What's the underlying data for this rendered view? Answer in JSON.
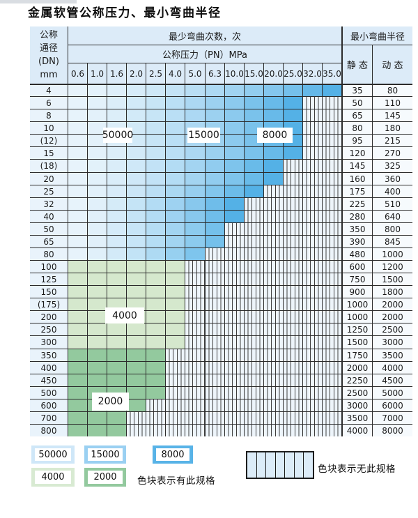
{
  "title": "金属软管公称压力、最小弯曲半径",
  "table": {
    "dn_header_lines": [
      "公称",
      "通径",
      "(DN)",
      "mm"
    ],
    "bend_cycles_header": "最少弯曲次数，次",
    "pn_header": "公称压力（PN）MPa",
    "radius_header": "最小弯曲半径",
    "static_header": "静 态",
    "dynamic_header": "动 态",
    "pn_columns": [
      "0.6",
      "1.0",
      "1.6",
      "2.0",
      "2.5",
      "4.0",
      "5.0",
      "6.3",
      "10.0",
      "15.0",
      "20.0",
      "25.0",
      "32.0",
      "35.0"
    ]
  },
  "overlay_labels": [
    "50000",
    "15000",
    "8000",
    "4000",
    "2000"
  ],
  "legend": {
    "items": [
      {
        "label": "50000",
        "color": "#cfe7f8"
      },
      {
        "label": "15000",
        "color": "#9ad0f2"
      },
      {
        "label": "8000",
        "color": "#58b3e7"
      },
      {
        "label": "4000",
        "color": "#d8ead2"
      },
      {
        "label": "2000",
        "color": "#93c99e"
      }
    ],
    "has_spec_text": "色块表示有此规格",
    "no_spec_text": "色块表示无此规格"
  },
  "colors": {
    "zone_50000": "#cfe7f8",
    "zone_15000": "#9ad0f2",
    "zone_8000": "#54b1e6",
    "zone_4000": "#d5e8cd",
    "zone_2000": "#93c99e",
    "blue_start": "#e7f3fb",
    "grid": "#2b2b2b",
    "header_bg": "#dcebf8",
    "dn_bg": "#e9f3fb",
    "value_bg": "#f6fafd",
    "stripe_bg": "#eef5fb"
  },
  "chart_data": {
    "type": "table",
    "title": "金属软管公称压力、最小弯曲半径",
    "column_group_header": "最少弯曲次数，次",
    "pn_columns_mpa": [
      0.6,
      1.0,
      1.6,
      2.0,
      2.5,
      4.0,
      5.0,
      6.3,
      10.0,
      15.0,
      20.0,
      25.0,
      32.0,
      35.0
    ],
    "bend_cycle_zone_labels": [
      "50000",
      "15000",
      "8000",
      "4000",
      "2000"
    ],
    "notes": [
      "色块表示有此规格",
      "色块表示无此规格"
    ],
    "rows": [
      {
        "dn": "4",
        "colored": 14,
        "max_pn": "35.0",
        "band": "blue",
        "static": "35",
        "dynamic": "80"
      },
      {
        "dn": "6",
        "colored": 12,
        "max_pn": "25.0",
        "band": "blue",
        "static": "50",
        "dynamic": "110"
      },
      {
        "dn": "8",
        "colored": 12,
        "max_pn": "25.0",
        "band": "blue",
        "static": "65",
        "dynamic": "145"
      },
      {
        "dn": "10",
        "colored": 12,
        "max_pn": "25.0",
        "band": "blue",
        "static": "80",
        "dynamic": "180"
      },
      {
        "dn": "(12)",
        "colored": 12,
        "max_pn": "25.0",
        "band": "blue",
        "static": "95",
        "dynamic": "215"
      },
      {
        "dn": "15",
        "colored": 12,
        "max_pn": "25.0",
        "band": "blue",
        "static": "120",
        "dynamic": "270"
      },
      {
        "dn": "(18)",
        "colored": 11,
        "max_pn": "20.0",
        "band": "blue",
        "static": "145",
        "dynamic": "325"
      },
      {
        "dn": "20",
        "colored": 11,
        "max_pn": "20.0",
        "band": "blue",
        "static": "160",
        "dynamic": "360"
      },
      {
        "dn": "25",
        "colored": 10,
        "max_pn": "15.0",
        "band": "blue",
        "static": "175",
        "dynamic": "400"
      },
      {
        "dn": "32",
        "colored": 9,
        "max_pn": "10.0",
        "band": "blue",
        "static": "225",
        "dynamic": "510"
      },
      {
        "dn": "40",
        "colored": 9,
        "max_pn": "10.0",
        "band": "blue",
        "static": "280",
        "dynamic": "640"
      },
      {
        "dn": "50",
        "colored": 8,
        "max_pn": "6.3",
        "band": "blue",
        "static": "350",
        "dynamic": "800"
      },
      {
        "dn": "65",
        "colored": 8,
        "max_pn": "6.3",
        "band": "blue",
        "static": "390",
        "dynamic": "845"
      },
      {
        "dn": "80",
        "colored": 7,
        "max_pn": "5.0",
        "band": "blue",
        "static": "480",
        "dynamic": "1000"
      },
      {
        "dn": "100",
        "colored": 6,
        "max_pn": "4.0",
        "band": "green4000",
        "static": "600",
        "dynamic": "1200"
      },
      {
        "dn": "125",
        "colored": 6,
        "max_pn": "4.0",
        "band": "green4000",
        "static": "750",
        "dynamic": "1500"
      },
      {
        "dn": "150",
        "colored": 6,
        "max_pn": "4.0",
        "band": "green4000",
        "static": "900",
        "dynamic": "1800"
      },
      {
        "dn": "(175)",
        "colored": 6,
        "max_pn": "4.0",
        "band": "green4000",
        "static": "1000",
        "dynamic": "2000"
      },
      {
        "dn": "200",
        "colored": 6,
        "max_pn": "4.0",
        "band": "green4000",
        "static": "1000",
        "dynamic": "2000"
      },
      {
        "dn": "250",
        "colored": 6,
        "max_pn": "4.0",
        "band": "green4000",
        "static": "1250",
        "dynamic": "2500"
      },
      {
        "dn": "300",
        "colored": 6,
        "max_pn": "4.0",
        "band": "green4000",
        "static": "1500",
        "dynamic": "3000"
      },
      {
        "dn": "350",
        "colored": 5,
        "max_pn": "2.5",
        "band": "green2000",
        "static": "1750",
        "dynamic": "3500"
      },
      {
        "dn": "400",
        "colored": 5,
        "max_pn": "2.5",
        "band": "green2000",
        "static": "2000",
        "dynamic": "4000"
      },
      {
        "dn": "450",
        "colored": 5,
        "max_pn": "2.5",
        "band": "green2000",
        "static": "2250",
        "dynamic": "4500"
      },
      {
        "dn": "500",
        "colored": 5,
        "max_pn": "2.5",
        "band": "green2000",
        "static": "2500",
        "dynamic": "5000"
      },
      {
        "dn": "600",
        "colored": 4,
        "max_pn": "2.0",
        "band": "green2000",
        "static": "3000",
        "dynamic": "6000"
      },
      {
        "dn": "700",
        "colored": 3,
        "max_pn": "1.6",
        "band": "green2000",
        "static": "3500",
        "dynamic": "7000"
      },
      {
        "dn": "800",
        "colored": 3,
        "max_pn": "1.6",
        "band": "green2000",
        "static": "4000",
        "dynamic": "8000"
      }
    ]
  }
}
